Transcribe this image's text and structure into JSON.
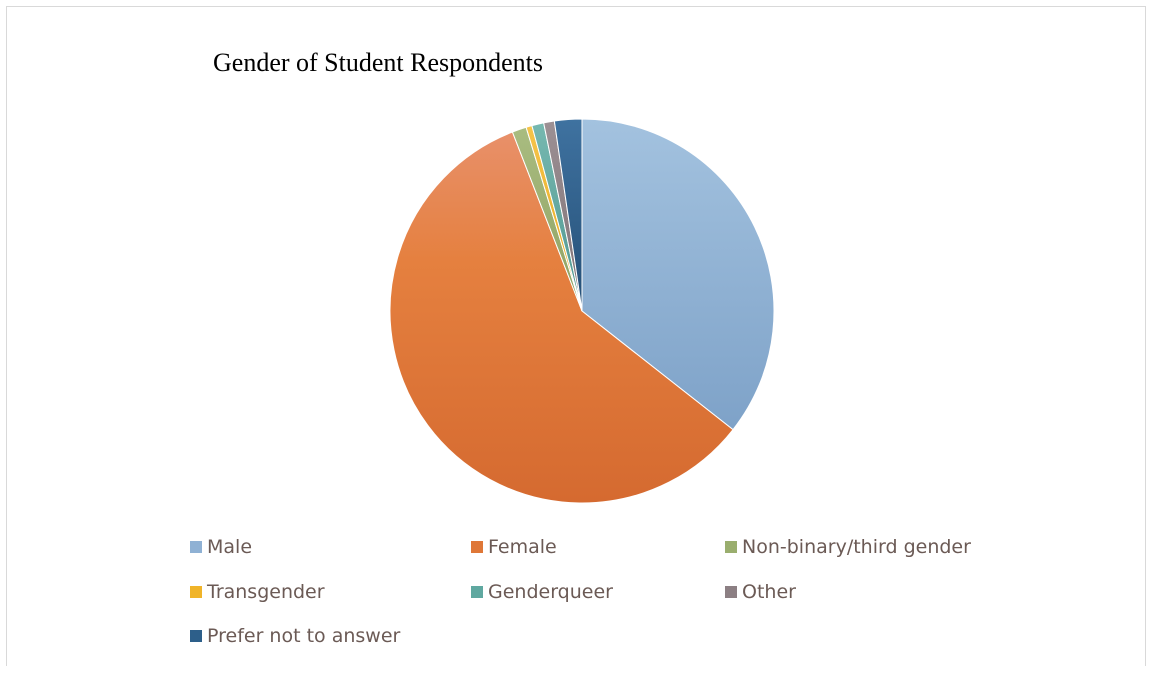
{
  "chart_data": {
    "type": "pie",
    "title": "Gender of Student Respondents",
    "series": [
      {
        "categories": [
          "Male",
          "Female",
          "Non-binary/third gender",
          "Transgender",
          "Genderqueer",
          "Other",
          "Prefer not to answer"
        ],
        "values": [
          35.6,
          58.5,
          1.2,
          0.5,
          1.0,
          0.9,
          2.3
        ],
        "unit": "%"
      }
    ],
    "colors": [
      "#8fb1d4",
      "#df7737",
      "#9aae6e",
      "#f0b429",
      "#5fa8a0",
      "#8c7f83",
      "#2d5f8a"
    ],
    "legend_position": "bottom"
  }
}
